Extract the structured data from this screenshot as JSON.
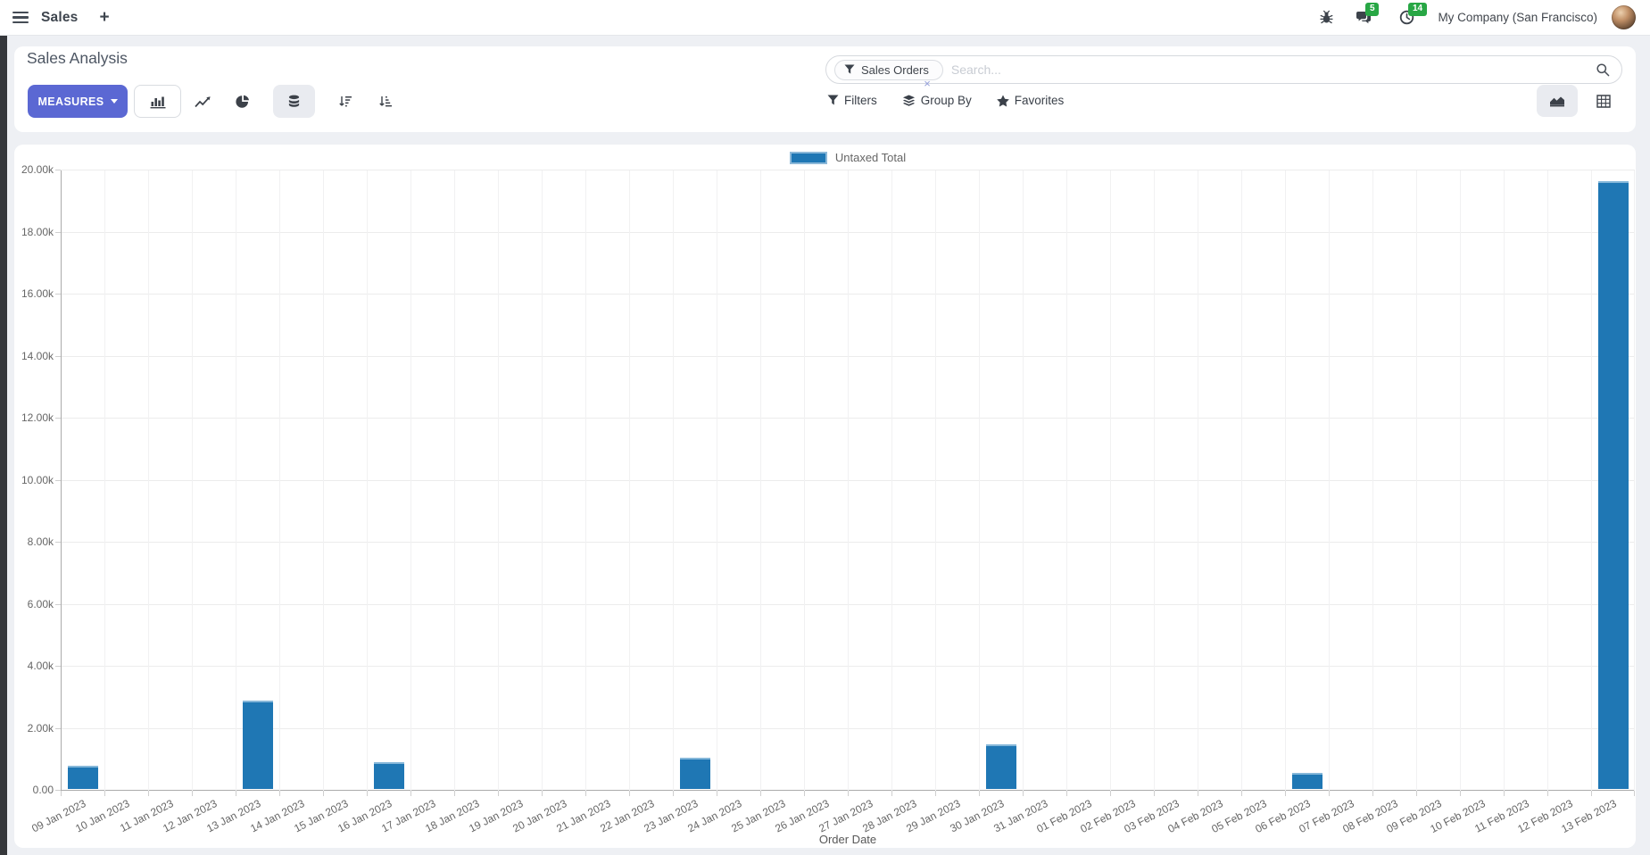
{
  "colors": {
    "primary": "#5b68d3",
    "bar_blue": "#1f77b4",
    "badge_green": "#28a745"
  },
  "navbar": {
    "app_name": "Sales",
    "plus": "+",
    "message_count": "5",
    "activity_count": "14",
    "company": "My Company (San Francisco)"
  },
  "control_panel": {
    "title": "Sales Analysis",
    "measures_label": "MEASURES",
    "search": {
      "facet": "Sales Orders",
      "facet_remove": "×",
      "placeholder": "Search..."
    },
    "filters_label": "Filters",
    "group_by_label": "Group By",
    "favorites_label": "Favorites"
  },
  "chart_data": {
    "type": "bar",
    "title": "",
    "legend": [
      {
        "name": "Untaxed Total",
        "color": "#1f77b4"
      }
    ],
    "legend_position": "top",
    "grid": true,
    "xlabel": "Order Date",
    "ylabel": "",
    "ylim": [
      0,
      20000
    ],
    "y_ticks": [
      "0.00",
      "2.00k",
      "4.00k",
      "6.00k",
      "8.00k",
      "10.00k",
      "12.00k",
      "14.00k",
      "16.00k",
      "18.00k",
      "20.00k"
    ],
    "categories": [
      "09 Jan 2023",
      "10 Jan 2023",
      "11 Jan 2023",
      "12 Jan 2023",
      "13 Jan 2023",
      "14 Jan 2023",
      "15 Jan 2023",
      "16 Jan 2023",
      "17 Jan 2023",
      "18 Jan 2023",
      "19 Jan 2023",
      "20 Jan 2023",
      "21 Jan 2023",
      "22 Jan 2023",
      "23 Jan 2023",
      "24 Jan 2023",
      "25 Jan 2023",
      "26 Jan 2023",
      "27 Jan 2023",
      "28 Jan 2023",
      "29 Jan 2023",
      "30 Jan 2023",
      "31 Jan 2023",
      "01 Feb 2023",
      "02 Feb 2023",
      "03 Feb 2023",
      "04 Feb 2023",
      "05 Feb 2023",
      "06 Feb 2023",
      "07 Feb 2023",
      "08 Feb 2023",
      "09 Feb 2023",
      "10 Feb 2023",
      "11 Feb 2023",
      "12 Feb 2023",
      "13 Feb 2023"
    ],
    "values": [
      820,
      0,
      0,
      0,
      2900,
      0,
      0,
      910,
      0,
      0,
      0,
      0,
      0,
      0,
      1060,
      0,
      0,
      0,
      0,
      0,
      0,
      1500,
      0,
      0,
      0,
      0,
      0,
      0,
      580,
      0,
      0,
      0,
      0,
      0,
      0,
      19650
    ]
  }
}
